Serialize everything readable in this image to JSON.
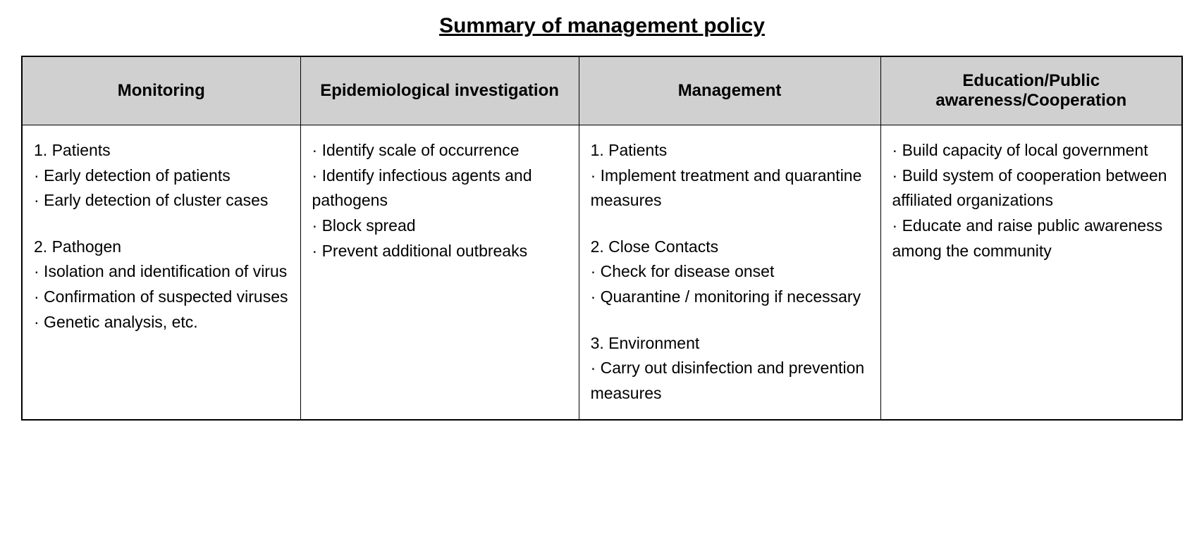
{
  "title": "Summary of management policy",
  "table": {
    "type": "table",
    "columns": [
      {
        "header": "Monitoring",
        "width": "24%"
      },
      {
        "header": "Epidemiological investigation",
        "width": "24%"
      },
      {
        "header": "Management",
        "width": "26%"
      },
      {
        "header": "Education/Public awareness/Cooperation",
        "width": "26%"
      }
    ],
    "header_bg": "#d0d0d0",
    "header_fontsize": 24,
    "cell_fontsize": 23,
    "border_color": "#000000",
    "background_color": "#ffffff",
    "cells": {
      "monitoring": {
        "groups": [
          {
            "heading": "1. Patients",
            "items": [
              "· Early detection of patients",
              "· Early detection of cluster cases"
            ]
          },
          {
            "heading": "2. Pathogen",
            "items": [
              "· Isolation and identification of virus",
              "· Confirmation of suspected viruses",
              "· Genetic analysis, etc."
            ]
          }
        ]
      },
      "epidemiological": {
        "groups": [
          {
            "heading": null,
            "items": [
              "· Identify scale of occurrence",
              "· Identify infectious agents and pathogens",
              "· Block spread",
              "· Prevent additional outbreaks"
            ]
          }
        ]
      },
      "management": {
        "groups": [
          {
            "heading": "1. Patients",
            "items": [
              "· Implement treatment and quarantine measures"
            ]
          },
          {
            "heading": "2. Close Contacts",
            "items": [
              "· Check for disease onset",
              "· Quarantine / monitoring if necessary"
            ]
          },
          {
            "heading": "3. Environment",
            "items": [
              "· Carry out disinfection and prevention measures"
            ]
          }
        ]
      },
      "education": {
        "groups": [
          {
            "heading": null,
            "items": [
              "· Build capacity of local government",
              "· Build system of cooperation between affiliated organizations",
              "· Educate and raise public awareness among the community"
            ]
          }
        ]
      }
    }
  }
}
